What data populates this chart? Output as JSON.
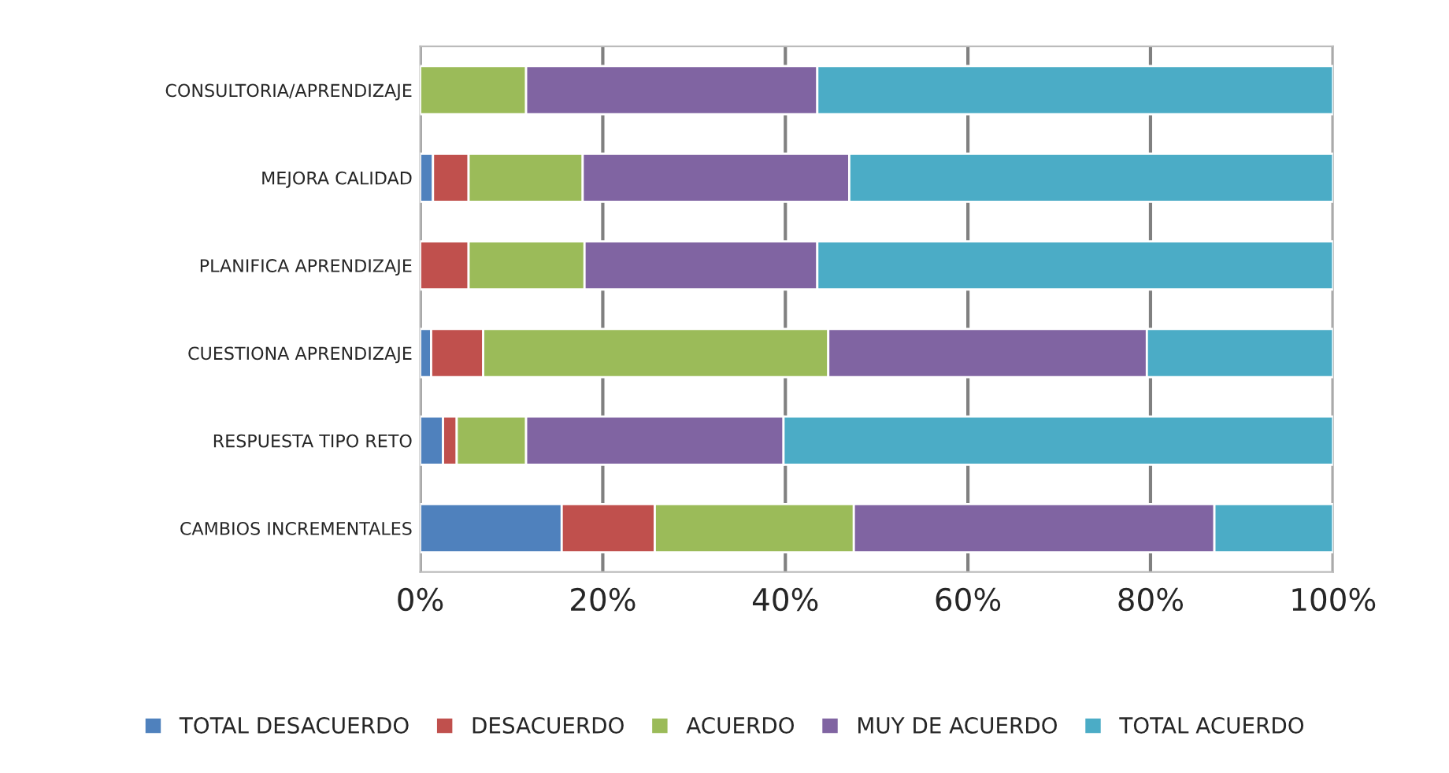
{
  "chart_data": {
    "type": "bar",
    "orientation": "horizontal",
    "stacked": true,
    "categories": [
      "CONSULTORIA/APRENDIZAJE",
      "MEJORA CALIDAD",
      "PLANIFICA APRENDIZAJE",
      "CUESTIONA APRENDIZAJE",
      "RESPUESTA TIPO RETO",
      "CAMBIOS INCREMENTALES"
    ],
    "series": [
      {
        "name": "TOTAL DESACUERDO",
        "color": "#4f81bd",
        "values": [
          0,
          1.4,
          0,
          1.2,
          2.5,
          15.5
        ]
      },
      {
        "name": "DESACUERDO",
        "color": "#c0504d",
        "values": [
          0,
          3.9,
          5.3,
          5.7,
          1.5,
          10.2
        ]
      },
      {
        "name": "ACUERDO",
        "color": "#9bbb59",
        "values": [
          11.6,
          12.5,
          12.7,
          37.8,
          7.6,
          21.8
        ]
      },
      {
        "name": "MUY DE ACUERDO",
        "color": "#8064a2",
        "values": [
          31.9,
          29.2,
          25.5,
          34.9,
          28.2,
          39.5
        ]
      },
      {
        "name": "TOTAL ACUERDO",
        "color": "#4bacc6",
        "values": [
          56.5,
          53.0,
          56.5,
          20.4,
          60.2,
          13.0
        ]
      }
    ],
    "xlim": [
      0,
      100
    ],
    "xticks": [
      {
        "value": 0,
        "label": "0%"
      },
      {
        "value": 20,
        "label": "20%"
      },
      {
        "value": 40,
        "label": "40%"
      },
      {
        "value": 60,
        "label": "60%"
      },
      {
        "value": 80,
        "label": "80%"
      },
      {
        "value": 100,
        "label": "100%"
      }
    ],
    "grid": "x",
    "legend": "bottom"
  }
}
